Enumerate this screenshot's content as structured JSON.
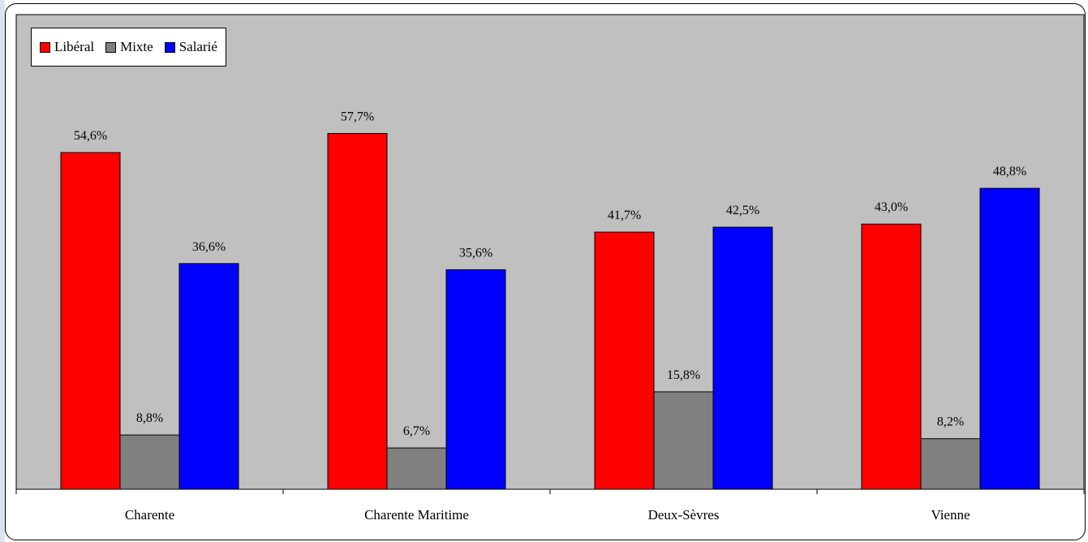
{
  "chart_data": {
    "type": "bar",
    "categories": [
      "Charente",
      "Charente Maritime",
      "Deux-Sèvres",
      "Vienne"
    ],
    "series": [
      {
        "name": "Libéral",
        "color": "#ff0000",
        "values": [
          54.6,
          57.7,
          41.7,
          43.0
        ],
        "labels": [
          "54,6%",
          "57,7%",
          "41,7%",
          "43,0%"
        ]
      },
      {
        "name": "Mixte",
        "color": "#808080",
        "values": [
          8.8,
          6.7,
          15.8,
          8.2
        ],
        "labels": [
          "8,8%",
          "6,7%",
          "15,8%",
          "8,2%"
        ]
      },
      {
        "name": "Salarié",
        "color": "#0000ff",
        "values": [
          36.6,
          35.6,
          42.5,
          48.8
        ],
        "labels": [
          "36,6%",
          "35,6%",
          "42,5%",
          "48,8%"
        ]
      }
    ],
    "ylim": [
      0,
      60
    ],
    "grid": false,
    "legend_position": "top-left",
    "plot_background": "#c0c0c0"
  }
}
